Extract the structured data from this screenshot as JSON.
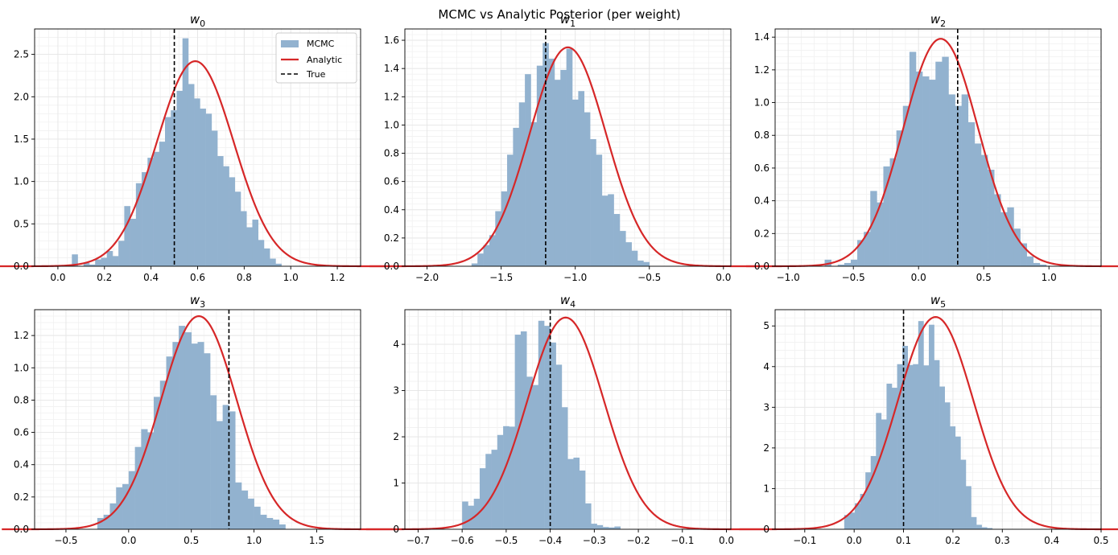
{
  "figure": {
    "suptitle": "MCMC vs Analytic Posterior (per weight)",
    "colors": {
      "hist": "#92b2cf",
      "analytic": "#d62728",
      "true_line": "#000000",
      "grid": "#e6e6e6"
    },
    "legend": {
      "placement": "upper-right",
      "panel_index": 0,
      "entries": [
        "MCMC",
        "Analytic",
        "True"
      ]
    }
  },
  "chart_data": [
    {
      "type": "histogram",
      "title": "w",
      "title_sub": "0",
      "xlim": [
        -0.1,
        1.3
      ],
      "ylim": [
        0,
        2.8
      ],
      "xticks": [
        0.0,
        0.2,
        0.4,
        0.6,
        0.8,
        1.0,
        1.2
      ],
      "xtick_labels": [
        "0.0",
        "0.2",
        "0.4",
        "0.6",
        "0.8",
        "1.0",
        "1.2"
      ],
      "yticks": [
        0.0,
        0.5,
        1.0,
        1.5,
        2.0,
        2.5
      ],
      "ytick_labels": [
        "0.0",
        "0.5",
        "1.0",
        "1.5",
        "2.0",
        "2.5"
      ],
      "bins": {
        "start": 0.06,
        "width": 0.025
      },
      "hist_values": [
        0.14,
        0.0,
        0.04,
        0.02,
        0.08,
        0.1,
        0.18,
        0.12,
        0.3,
        0.71,
        0.56,
        0.98,
        1.11,
        1.28,
        1.35,
        1.47,
        1.76,
        1.84,
        2.07,
        2.69,
        2.15,
        1.98,
        1.86,
        1.8,
        1.6,
        1.3,
        1.18,
        1.05,
        0.88,
        0.65,
        0.46,
        0.55,
        0.31,
        0.21,
        0.09,
        0.03
      ],
      "analytic": {
        "mean": 0.59,
        "peak": 2.42
      },
      "true_value": 0.5
    },
    {
      "type": "histogram",
      "title": "w",
      "title_sub": "1",
      "xlim": [
        -2.15,
        0.05
      ],
      "ylim": [
        0,
        1.68
      ],
      "xticks": [
        -2.0,
        -1.5,
        -1.0,
        -0.5,
        0.0
      ],
      "xtick_labels": [
        "−2.0",
        "−1.5",
        "−1.0",
        "−0.5",
        "0.0"
      ],
      "yticks": [
        0.0,
        0.2,
        0.4,
        0.6,
        0.8,
        1.0,
        1.2,
        1.4,
        1.6
      ],
      "ytick_labels": [
        "0.0",
        "0.2",
        "0.4",
        "0.6",
        "0.8",
        "1.0",
        "1.2",
        "1.4",
        "1.6"
      ],
      "bins": {
        "start": -1.7,
        "width": 0.04
      },
      "hist_values": [
        0.02,
        0.09,
        0.15,
        0.22,
        0.39,
        0.53,
        0.79,
        0.98,
        1.16,
        1.36,
        1.02,
        1.42,
        1.58,
        1.47,
        1.32,
        1.39,
        1.54,
        1.18,
        1.24,
        1.09,
        0.9,
        0.79,
        0.5,
        0.51,
        0.37,
        0.25,
        0.17,
        0.11,
        0.04,
        0.03
      ],
      "analytic": {
        "mean": -1.05,
        "peak": 1.55
      },
      "true_value": -1.2
    },
    {
      "type": "histogram",
      "title": "w",
      "title_sub": "2",
      "xlim": [
        -1.1,
        1.4
      ],
      "ylim": [
        0,
        1.45
      ],
      "xticks": [
        -1.0,
        -0.5,
        0.0,
        0.5,
        1.0
      ],
      "xtick_labels": [
        "−1.0",
        "−0.5",
        "0.0",
        "0.5",
        "1.0"
      ],
      "yticks": [
        0.0,
        0.2,
        0.4,
        0.6,
        0.8,
        1.0,
        1.2,
        1.4
      ],
      "ytick_labels": [
        "0.0",
        "0.2",
        "0.4",
        "0.6",
        "0.8",
        "1.0",
        "1.2",
        "1.4"
      ],
      "bins": {
        "start": -0.72,
        "width": 0.05
      },
      "hist_values": [
        0.04,
        0.0,
        0.01,
        0.02,
        0.04,
        0.16,
        0.21,
        0.46,
        0.39,
        0.61,
        0.66,
        0.83,
        0.98,
        1.31,
        1.19,
        1.16,
        1.14,
        1.25,
        1.28,
        1.05,
        0.98,
        1.05,
        0.88,
        0.75,
        0.68,
        0.59,
        0.44,
        0.33,
        0.36,
        0.23,
        0.14,
        0.06,
        0.02,
        0.01
      ],
      "analytic": {
        "mean": 0.17,
        "peak": 1.39
      },
      "true_value": 0.3
    },
    {
      "type": "histogram",
      "title": "w",
      "title_sub": "3",
      "xlim": [
        -0.75,
        1.85
      ],
      "ylim": [
        0,
        1.36
      ],
      "xticks": [
        -0.5,
        0.0,
        0.5,
        1.0,
        1.5
      ],
      "xtick_labels": [
        "−0.5",
        "0.0",
        "0.5",
        "1.0",
        "1.5"
      ],
      "yticks": [
        0.0,
        0.2,
        0.4,
        0.6,
        0.8,
        1.0,
        1.2
      ],
      "ytick_labels": [
        "0.0",
        "0.2",
        "0.4",
        "0.6",
        "0.8",
        "1.0",
        "1.2"
      ],
      "bins": {
        "start": -0.25,
        "width": 0.05
      },
      "hist_values": [
        0.07,
        0.09,
        0.16,
        0.26,
        0.28,
        0.36,
        0.51,
        0.62,
        0.6,
        0.82,
        0.92,
        1.07,
        1.16,
        1.26,
        1.22,
        1.15,
        1.16,
        1.09,
        0.83,
        0.67,
        0.77,
        0.73,
        0.29,
        0.24,
        0.19,
        0.14,
        0.09,
        0.07,
        0.06,
        0.03
      ],
      "analytic": {
        "mean": 0.56,
        "peak": 1.32
      },
      "true_value": 0.8
    },
    {
      "type": "histogram",
      "title": "w",
      "title_sub": "4",
      "xlim": [
        -0.73,
        0.01
      ],
      "ylim": [
        0,
        4.75
      ],
      "xticks": [
        -0.7,
        -0.6,
        -0.5,
        -0.4,
        -0.3,
        -0.2,
        -0.1,
        0.0
      ],
      "xtick_labels": [
        "−0.7",
        "−0.6",
        "−0.5",
        "−0.4",
        "−0.3",
        "−0.2",
        "−0.1",
        "0.0"
      ],
      "yticks": [
        0,
        1,
        2,
        3,
        4
      ],
      "ytick_labels": [
        "0",
        "1",
        "2",
        "3",
        "4"
      ],
      "bins": {
        "start": -0.6,
        "width": 0.0133
      },
      "hist_values": [
        0.6,
        0.51,
        0.66,
        1.32,
        1.63,
        1.72,
        2.04,
        2.23,
        2.22,
        4.21,
        4.28,
        3.3,
        3.12,
        4.51,
        4.4,
        4.04,
        3.56,
        2.64,
        1.52,
        1.55,
        1.27,
        0.56,
        0.12,
        0.09,
        0.05,
        0.04,
        0.06
      ],
      "analytic": {
        "mean": -0.365,
        "peak": 4.58
      },
      "true_value": -0.4
    },
    {
      "type": "histogram",
      "title": "w",
      "title_sub": "5",
      "xlim": [
        -0.16,
        0.5
      ],
      "ylim": [
        0,
        5.4
      ],
      "xticks": [
        -0.1,
        0.0,
        0.1,
        0.2,
        0.3,
        0.4,
        0.5
      ],
      "xtick_labels": [
        "−0.1",
        "0.0",
        "0.1",
        "0.2",
        "0.3",
        "0.4",
        "0.5"
      ],
      "yticks": [
        0,
        1,
        2,
        3,
        4,
        5
      ],
      "ytick_labels": [
        "0",
        "1",
        "2",
        "3",
        "4",
        "5"
      ],
      "bins": {
        "start": -0.02,
        "width": 0.0107
      },
      "hist_values": [
        0.35,
        0.41,
        0.64,
        0.87,
        1.4,
        1.8,
        2.86,
        2.7,
        3.58,
        3.48,
        4.06,
        4.51,
        4.04,
        4.06,
        5.12,
        4.03,
        5.03,
        4.16,
        3.51,
        3.12,
        2.53,
        2.28,
        1.71,
        1.06,
        0.3,
        0.11,
        0.05,
        0.03
      ],
      "analytic": {
        "mean": 0.165,
        "peak": 5.22
      },
      "true_value": 0.1
    }
  ]
}
